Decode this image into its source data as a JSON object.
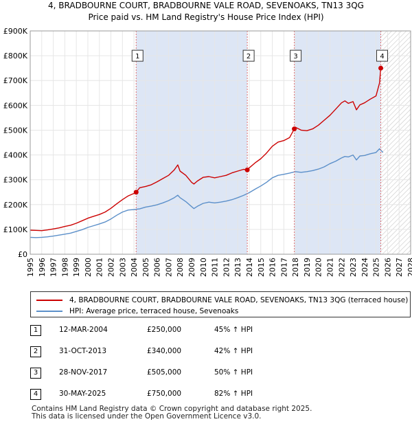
{
  "title_line1": "4, BRADBOURNE COURT, BRADBOURNE VALE ROAD, SEVENOAKS, TN13 3QG",
  "title_line2": "Price paid vs. HM Land Registry's House Price Index (HPI)",
  "colors": {
    "property": "#cc0000",
    "hpi": "#5b8fc9",
    "shade": "#dde6f5",
    "marker_line": "#e07070"
  },
  "legend": {
    "property": "4, BRADBOURNE COURT, BRADBOURNE VALE ROAD, SEVENOAKS, TN13 3QG (terraced house)",
    "hpi": "HPI: Average price, terraced house, Sevenoaks"
  },
  "sales": [
    {
      "num": "1",
      "date": "12-MAR-2004",
      "price": "£250,000",
      "hpi": "45% ↑ HPI"
    },
    {
      "num": "2",
      "date": "31-OCT-2013",
      "price": "£340,000",
      "hpi": "42% ↑ HPI"
    },
    {
      "num": "3",
      "date": "28-NOV-2017",
      "price": "£505,000",
      "hpi": "50% ↑ HPI"
    },
    {
      "num": "4",
      "date": "30-MAY-2025",
      "price": "£750,000",
      "hpi": "82% ↑ HPI"
    }
  ],
  "footer_line1": "Contains HM Land Registry data © Crown copyright and database right 2025.",
  "footer_line2": "This data is licensed under the Open Government Licence v3.0.",
  "chart_data": {
    "type": "line",
    "title": "4, BRADBOURNE COURT, BRADBOURNE VALE ROAD, SEVENOAKS, TN13 3QG",
    "subtitle": "Price paid vs. HM Land Registry's House Price Index (HPI)",
    "xlim": [
      1995,
      2028
    ],
    "ylim": [
      0,
      900000
    ],
    "yticks": [
      0,
      100000,
      200000,
      300000,
      400000,
      500000,
      600000,
      700000,
      800000,
      900000
    ],
    "ytick_labels": [
      "£0",
      "£100K",
      "£200K",
      "£300K",
      "£400K",
      "£500K",
      "£600K",
      "£700K",
      "£800K",
      "£900K"
    ],
    "xticks": [
      1995,
      1996,
      1997,
      1998,
      1999,
      2000,
      2001,
      2002,
      2003,
      2004,
      2005,
      2006,
      2007,
      2008,
      2009,
      2010,
      2011,
      2012,
      2013,
      2014,
      2015,
      2016,
      2017,
      2018,
      2019,
      2020,
      2021,
      2022,
      2023,
      2024,
      2025,
      2026,
      2027,
      2028
    ],
    "forecast_from": 2025.42,
    "sale_points": [
      {
        "label": "1",
        "x": 2004.19,
        "y": 250000
      },
      {
        "label": "2",
        "x": 2013.83,
        "y": 340000
      },
      {
        "label": "3",
        "x": 2017.91,
        "y": 505000
      },
      {
        "label": "4",
        "x": 2025.41,
        "y": 750000
      }
    ],
    "series": [
      {
        "name": "4, BRADBOURNE COURT, BRADBOURNE VALE ROAD, SEVENOAKS, TN13 3QG (terraced house)",
        "x": [
          1995,
          1995.5,
          1996,
          1996.5,
          1997,
          1997.5,
          1998,
          1998.5,
          1999,
          1999.5,
          2000,
          2000.5,
          2001,
          2001.5,
          2002,
          2002.5,
          2003,
          2003.5,
          2004,
          2004.19,
          2004.5,
          2005,
          2005.5,
          2006,
          2006.5,
          2007,
          2007.5,
          2007.8,
          2008,
          2008.5,
          2009,
          2009.2,
          2009.5,
          2010,
          2010.5,
          2011,
          2011.5,
          2012,
          2012.5,
          2013,
          2013.5,
          2013.83,
          2014,
          2014.5,
          2015,
          2015.5,
          2016,
          2016.5,
          2017,
          2017.5,
          2017.91,
          2018,
          2018.5,
          2019,
          2019.5,
          2020,
          2020.5,
          2021,
          2021.5,
          2022,
          2022.3,
          2022.6,
          2023,
          2023.3,
          2023.6,
          2024,
          2024.5,
          2025,
          2025.3,
          2025.41
        ],
        "values": [
          97000,
          96000,
          95000,
          98000,
          102000,
          106000,
          112000,
          117000,
          125000,
          135000,
          145000,
          153000,
          160000,
          170000,
          185000,
          203000,
          220000,
          235000,
          245000,
          250000,
          268000,
          273000,
          280000,
          292000,
          305000,
          318000,
          340000,
          360000,
          335000,
          318000,
          290000,
          283000,
          295000,
          310000,
          313000,
          308000,
          313000,
          318000,
          328000,
          335000,
          342000,
          340000,
          348000,
          368000,
          385000,
          408000,
          435000,
          452000,
          458000,
          470000,
          505000,
          512000,
          500000,
          498000,
          505000,
          520000,
          540000,
          560000,
          585000,
          610000,
          618000,
          608000,
          615000,
          582000,
          602000,
          610000,
          625000,
          638000,
          690000,
          750000
        ]
      },
      {
        "name": "HPI: Average price, terraced house, Sevenoaks",
        "x": [
          1995,
          1995.5,
          1996,
          1996.5,
          1997,
          1997.5,
          1998,
          1998.5,
          1999,
          1999.5,
          2000,
          2000.5,
          2001,
          2001.5,
          2002,
          2002.5,
          2003,
          2003.5,
          2004,
          2004.5,
          2005,
          2005.5,
          2006,
          2006.5,
          2007,
          2007.5,
          2007.8,
          2008,
          2008.5,
          2009,
          2009.2,
          2009.5,
          2010,
          2010.5,
          2011,
          2011.5,
          2012,
          2012.5,
          2013,
          2013.5,
          2014,
          2014.5,
          2015,
          2015.5,
          2016,
          2016.5,
          2017,
          2017.5,
          2018,
          2018.5,
          2019,
          2019.5,
          2020,
          2020.5,
          2021,
          2021.5,
          2022,
          2022.3,
          2022.6,
          2023,
          2023.3,
          2023.6,
          2024,
          2024.5,
          2025,
          2025.3,
          2025.6
        ],
        "values": [
          68000,
          67000,
          68000,
          70000,
          73000,
          77000,
          81000,
          85000,
          92000,
          99000,
          108000,
          115000,
          122000,
          130000,
          142000,
          157000,
          170000,
          178000,
          180000,
          183000,
          190000,
          194000,
          199000,
          207000,
          216000,
          228000,
          238000,
          228000,
          212000,
          192000,
          184000,
          193000,
          205000,
          210000,
          207000,
          210000,
          214000,
          220000,
          228000,
          237000,
          248000,
          262000,
          275000,
          290000,
          308000,
          318000,
          322000,
          327000,
          333000,
          330000,
          333000,
          337000,
          343000,
          352000,
          365000,
          375000,
          388000,
          394000,
          392000,
          400000,
          380000,
          396000,
          398000,
          405000,
          410000,
          425000,
          410000
        ]
      }
    ]
  }
}
